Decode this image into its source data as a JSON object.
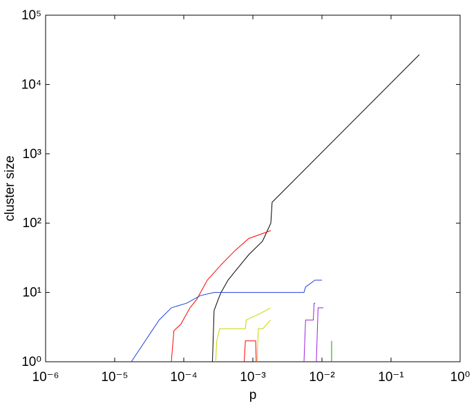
{
  "chart_data": {
    "type": "line",
    "x_label": "p",
    "y_label": "cluster size",
    "xscale": "log",
    "yscale": "log",
    "xlim": [
      1e-06,
      1
    ],
    "ylim": [
      1,
      100000
    ],
    "xticks": [
      {
        "value": 1e-06,
        "label": "10⁻⁶"
      },
      {
        "value": 1e-05,
        "label": "10⁻⁵"
      },
      {
        "value": 0.0001,
        "label": "10⁻⁴"
      },
      {
        "value": 0.001,
        "label": "10⁻³"
      },
      {
        "value": 0.01,
        "label": "10⁻²"
      },
      {
        "value": 0.1,
        "label": "10⁻¹"
      },
      {
        "value": 1,
        "label": "10⁰"
      }
    ],
    "yticks": [
      {
        "value": 1,
        "label": "10⁰"
      },
      {
        "value": 10,
        "label": "10¹"
      },
      {
        "value": 100,
        "label": "10²"
      },
      {
        "value": 1000,
        "label": "10³"
      },
      {
        "value": 10000,
        "label": "10⁴"
      },
      {
        "value": 100000,
        "label": "10⁵"
      }
    ],
    "series": [
      {
        "color": "#000000",
        "x": [
          0.00026,
          0.000275,
          0.000316,
          0.000347,
          0.000437,
          0.00055,
          0.00087,
          0.00138,
          0.00182,
          0.0019,
          0.257
        ],
        "values": [
          1,
          5.5,
          8,
          10,
          15,
          20,
          35,
          55,
          100,
          200,
          27000
        ]
      },
      {
        "color": "#ff0000",
        "x": [
          6.6e-05,
          7.2e-05,
          9.1e-05,
          0.000123,
          0.000155,
          0.000219,
          0.000347,
          0.00055,
          0.00087,
          0.00182
        ],
        "values": [
          1,
          2.8,
          3.5,
          6,
          8,
          15,
          25,
          40,
          60,
          78
        ]
      },
      {
        "color": "#1f3fdf",
        "x": [
          1.74e-05,
          4.4e-05,
          6.6e-05,
          0.00011,
          0.000174,
          0.000275,
          0.0055,
          0.0058,
          0.0079,
          0.01
        ],
        "values": [
          1,
          4,
          6,
          7,
          9,
          10,
          10,
          12,
          15,
          15
        ]
      },
      {
        "color": "#c8d400",
        "x": [
          0.00029,
          0.0003,
          0.00033,
          0.00078,
          0.0008,
          0.0013,
          0.0018
        ],
        "values": [
          1,
          2,
          3,
          3,
          4,
          5,
          6
        ]
      },
      {
        "color": "#c8d400",
        "x": [
          0.00115,
          0.0012,
          0.0014,
          0.0018
        ],
        "values": [
          1,
          3,
          3,
          4
        ]
      },
      {
        "color": "#ff0000",
        "x": [
          0.00075,
          0.00078,
          0.0011,
          0.00112
        ],
        "values": [
          1,
          2,
          2,
          1
        ]
      },
      {
        "color": "#9a1fe0",
        "x": [
          0.0055,
          0.0058,
          0.0075,
          0.0077,
          0.008
        ],
        "values": [
          1,
          4,
          4,
          7,
          7
        ]
      },
      {
        "color": "#9a1fe0",
        "x": [
          0.0083,
          0.0088,
          0.0105
        ],
        "values": [
          1,
          6,
          6
        ]
      },
      {
        "color": "#00a000",
        "x": [
          0.0138,
          0.0138
        ],
        "values": [
          1,
          2
        ]
      }
    ]
  }
}
